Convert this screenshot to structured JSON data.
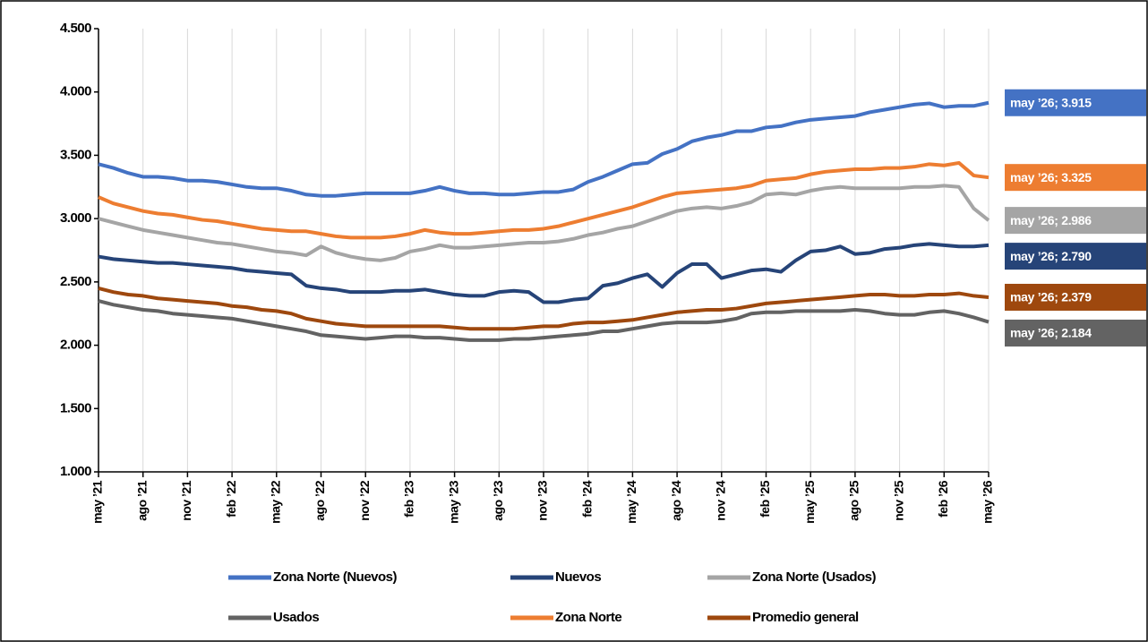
{
  "chart_data": {
    "type": "line",
    "categories": [
      "may ’21",
      null,
      null,
      "ago ’21",
      null,
      null,
      "nov ’21",
      null,
      null,
      "feb ’22",
      null,
      null,
      "may ’22",
      null,
      null,
      "ago ’22",
      null,
      null,
      "nov ’22",
      null,
      null,
      "feb ’23",
      null,
      null,
      "may ’23",
      null,
      null,
      "ago ’23",
      null,
      null,
      "nov ’23",
      null,
      null,
      "feb ’24",
      null,
      null,
      "may ’24",
      null,
      null,
      "ago ’24",
      null,
      null,
      "nov ’24",
      null,
      null,
      "feb ’25",
      null,
      null,
      "may ’25",
      null,
      null,
      "ago ’25",
      null,
      null,
      "nov ’25",
      null,
      null,
      "feb ’26",
      null,
      null,
      "may ’26"
    ],
    "ylim": [
      1000,
      4500
    ],
    "yticks": [
      {
        "value": 1000,
        "label": "1.000"
      },
      {
        "value": 1500,
        "label": "1.500"
      },
      {
        "value": 2000,
        "label": "2.000"
      },
      {
        "value": 2500,
        "label": "2.500"
      },
      {
        "value": 3000,
        "label": "3.000"
      },
      {
        "value": 3500,
        "label": "3.500"
      },
      {
        "value": 4000,
        "label": "4.000"
      },
      {
        "value": 4500,
        "label": "4.500"
      }
    ],
    "grid": "x",
    "series": [
      {
        "name": "Zona Norte (Nuevos)",
        "color": "#4472c4",
        "values": [
          3430,
          3400,
          3360,
          3330,
          3330,
          3320,
          3300,
          3300,
          3290,
          3270,
          3250,
          3240,
          3240,
          3220,
          3190,
          3180,
          3180,
          3190,
          3200,
          3200,
          3200,
          3200,
          3220,
          3250,
          3220,
          3200,
          3200,
          3190,
          3190,
          3200,
          3210,
          3210,
          3230,
          3290,
          3330,
          3380,
          3430,
          3440,
          3510,
          3550,
          3610,
          3640,
          3660,
          3690,
          3690,
          3720,
          3730,
          3760,
          3780,
          3790,
          3800,
          3810,
          3840,
          3860,
          3880,
          3900,
          3910,
          3880,
          3890,
          3890,
          3915
        ],
        "value_labels": [
          null,
          null,
          null,
          null,
          null,
          null,
          null,
          null,
          null,
          null,
          null,
          null,
          null,
          null,
          null,
          null,
          null,
          null,
          null,
          null,
          null,
          null,
          null,
          null,
          null,
          null,
          null,
          null,
          null,
          null,
          null,
          null,
          null,
          null,
          null,
          null,
          null,
          null,
          null,
          null,
          null,
          null,
          null,
          null,
          null,
          null,
          null,
          null,
          null,
          null,
          null,
          null,
          null,
          null,
          null,
          null,
          null,
          null,
          null,
          null,
          "may ’26;  3.915"
        ]
      },
      {
        "name": "Nuevos",
        "color": "#264478",
        "values": [
          2700,
          2680,
          2670,
          2660,
          2650,
          2650,
          2640,
          2630,
          2620,
          2610,
          2590,
          2580,
          2570,
          2560,
          2470,
          2450,
          2440,
          2420,
          2420,
          2420,
          2430,
          2430,
          2440,
          2420,
          2400,
          2390,
          2390,
          2420,
          2430,
          2420,
          2340,
          2340,
          2360,
          2370,
          2470,
          2490,
          2530,
          2560,
          2460,
          2570,
          2640,
          2640,
          2530,
          2560,
          2590,
          2600,
          2580,
          2670,
          2740,
          2750,
          2780,
          2720,
          2730,
          2760,
          2770,
          2790,
          2800,
          2790,
          2780,
          2780,
          2790
        ],
        "value_labels": [
          null,
          null,
          null,
          null,
          null,
          null,
          null,
          null,
          null,
          null,
          null,
          null,
          null,
          null,
          null,
          null,
          null,
          null,
          null,
          null,
          null,
          null,
          null,
          null,
          null,
          null,
          null,
          null,
          null,
          null,
          null,
          null,
          null,
          null,
          null,
          null,
          null,
          null,
          null,
          null,
          null,
          null,
          null,
          null,
          null,
          null,
          null,
          null,
          null,
          null,
          null,
          null,
          null,
          null,
          null,
          null,
          null,
          null,
          null,
          null,
          "may ’26;  2.790"
        ]
      },
      {
        "name": "Zona Norte (Usados)",
        "color": "#a5a5a5",
        "values": [
          3000,
          2970,
          2940,
          2910,
          2890,
          2870,
          2850,
          2830,
          2810,
          2800,
          2780,
          2760,
          2740,
          2730,
          2710,
          2780,
          2730,
          2700,
          2680,
          2670,
          2690,
          2740,
          2760,
          2790,
          2770,
          2770,
          2780,
          2790,
          2800,
          2810,
          2810,
          2820,
          2840,
          2870,
          2890,
          2920,
          2940,
          2980,
          3020,
          3060,
          3080,
          3090,
          3080,
          3100,
          3130,
          3190,
          3200,
          3190,
          3220,
          3240,
          3250,
          3240,
          3240,
          3240,
          3240,
          3250,
          3250,
          3260,
          3250,
          3080,
          2986
        ],
        "value_labels": [
          null,
          null,
          null,
          null,
          null,
          null,
          null,
          null,
          null,
          null,
          null,
          null,
          null,
          null,
          null,
          null,
          null,
          null,
          null,
          null,
          null,
          null,
          null,
          null,
          null,
          null,
          null,
          null,
          null,
          null,
          null,
          null,
          null,
          null,
          null,
          null,
          null,
          null,
          null,
          null,
          null,
          null,
          null,
          null,
          null,
          null,
          null,
          null,
          null,
          null,
          null,
          null,
          null,
          null,
          null,
          null,
          null,
          null,
          null,
          null,
          "may ’26;  2.986"
        ]
      },
      {
        "name": "Usados",
        "color": "#636363",
        "values": [
          2350,
          2320,
          2300,
          2280,
          2270,
          2250,
          2240,
          2230,
          2220,
          2210,
          2190,
          2170,
          2150,
          2130,
          2110,
          2080,
          2070,
          2060,
          2050,
          2060,
          2070,
          2070,
          2060,
          2060,
          2050,
          2040,
          2040,
          2040,
          2050,
          2050,
          2060,
          2070,
          2080,
          2090,
          2110,
          2110,
          2130,
          2150,
          2170,
          2180,
          2180,
          2180,
          2190,
          2210,
          2250,
          2260,
          2260,
          2270,
          2270,
          2270,
          2270,
          2280,
          2270,
          2250,
          2240,
          2240,
          2260,
          2270,
          2250,
          2220,
          2184
        ],
        "value_labels": [
          null,
          null,
          null,
          null,
          null,
          null,
          null,
          null,
          null,
          null,
          null,
          null,
          null,
          null,
          null,
          null,
          null,
          null,
          null,
          null,
          null,
          null,
          null,
          null,
          null,
          null,
          null,
          null,
          null,
          null,
          null,
          null,
          null,
          null,
          null,
          null,
          null,
          null,
          null,
          null,
          null,
          null,
          null,
          null,
          null,
          null,
          null,
          null,
          null,
          null,
          null,
          null,
          null,
          null,
          null,
          null,
          null,
          null,
          null,
          null,
          "may ’26;  2.184"
        ]
      },
      {
        "name": "Zona Norte",
        "color": "#ed7d31",
        "values": [
          3170,
          3120,
          3090,
          3060,
          3040,
          3030,
          3010,
          2990,
          2980,
          2960,
          2940,
          2920,
          2910,
          2900,
          2900,
          2880,
          2860,
          2850,
          2850,
          2850,
          2860,
          2880,
          2910,
          2890,
          2880,
          2880,
          2890,
          2900,
          2910,
          2910,
          2920,
          2940,
          2970,
          3000,
          3030,
          3060,
          3090,
          3130,
          3170,
          3200,
          3210,
          3220,
          3230,
          3240,
          3260,
          3300,
          3310,
          3320,
          3350,
          3370,
          3380,
          3390,
          3390,
          3400,
          3400,
          3410,
          3430,
          3420,
          3440,
          3340,
          3325
        ],
        "value_labels": [
          null,
          null,
          null,
          null,
          null,
          null,
          null,
          null,
          null,
          null,
          null,
          null,
          null,
          null,
          null,
          null,
          null,
          null,
          null,
          null,
          null,
          null,
          null,
          null,
          null,
          null,
          null,
          null,
          null,
          null,
          null,
          null,
          null,
          null,
          null,
          null,
          null,
          null,
          null,
          null,
          null,
          null,
          null,
          null,
          null,
          null,
          null,
          null,
          null,
          null,
          null,
          null,
          null,
          null,
          null,
          null,
          null,
          null,
          null,
          null,
          "may ’26;  3.325"
        ]
      },
      {
        "name": "Promedio general",
        "color": "#9e480e",
        "values": [
          2450,
          2420,
          2400,
          2390,
          2370,
          2360,
          2350,
          2340,
          2330,
          2310,
          2300,
          2280,
          2270,
          2250,
          2210,
          2190,
          2170,
          2160,
          2150,
          2150,
          2150,
          2150,
          2150,
          2150,
          2140,
          2130,
          2130,
          2130,
          2130,
          2140,
          2150,
          2150,
          2170,
          2180,
          2180,
          2190,
          2200,
          2220,
          2240,
          2260,
          2270,
          2280,
          2280,
          2290,
          2310,
          2330,
          2340,
          2350,
          2360,
          2370,
          2380,
          2390,
          2400,
          2400,
          2390,
          2390,
          2400,
          2400,
          2410,
          2390,
          2379
        ],
        "value_labels": [
          null,
          null,
          null,
          null,
          null,
          null,
          null,
          null,
          null,
          null,
          null,
          null,
          null,
          null,
          null,
          null,
          null,
          null,
          null,
          null,
          null,
          null,
          null,
          null,
          null,
          null,
          null,
          null,
          null,
          null,
          null,
          null,
          null,
          null,
          null,
          null,
          null,
          null,
          null,
          null,
          null,
          null,
          null,
          null,
          null,
          null,
          null,
          null,
          null,
          null,
          null,
          null,
          null,
          null,
          null,
          null,
          null,
          null,
          null,
          null,
          "may ’26; 2.379"
        ]
      }
    ]
  }
}
